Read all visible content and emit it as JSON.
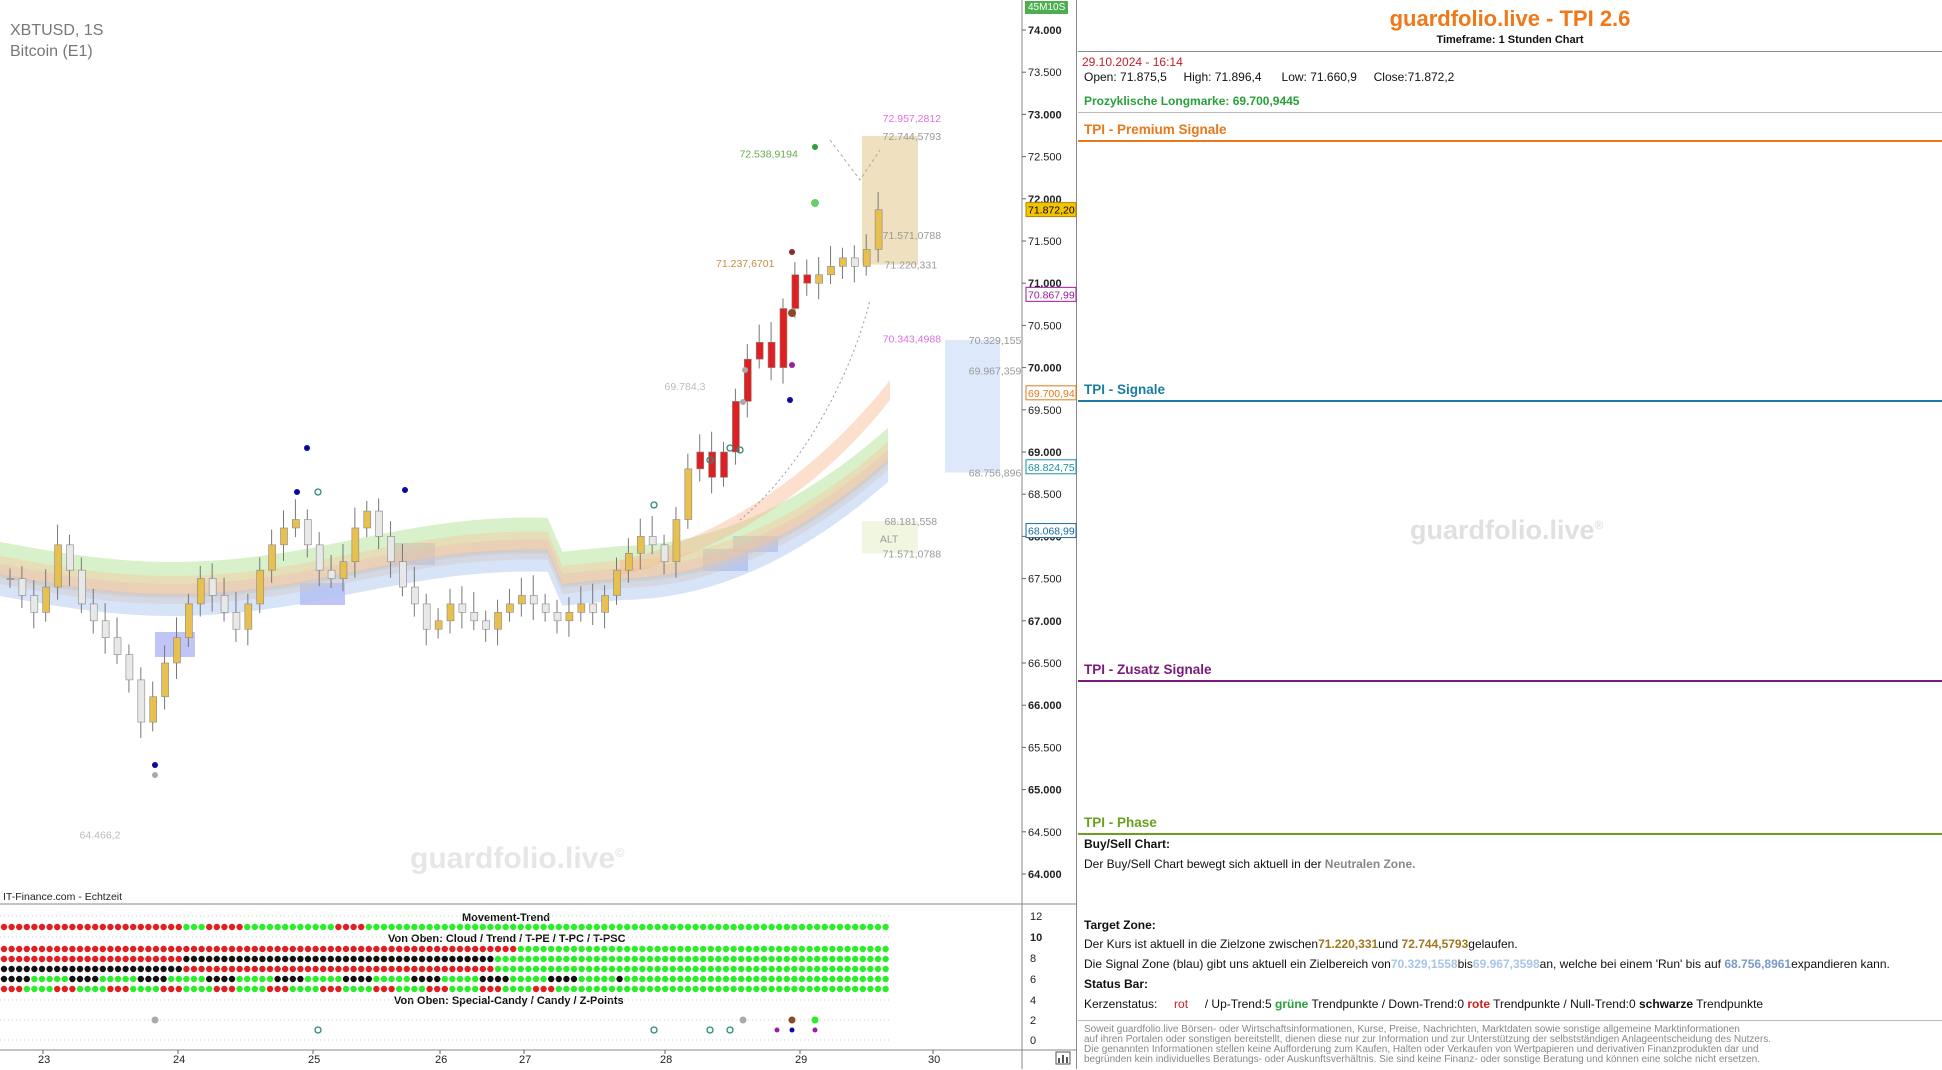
{
  "chart": {
    "symbol": "XBTUSD, 1S",
    "name": "Bitcoin (E1)",
    "timeframe_badge": "45M10S",
    "source": "IT-Finance.com - Echtzeit",
    "watermark": "guardfolio.live",
    "watermark_symbol": "©",
    "price_labels": [
      "74.000",
      "73.500",
      "73.000",
      "72.500",
      "72.000",
      "71.500",
      "71.000",
      "70.500",
      "70.000",
      "69.500",
      "69.000",
      "68.500",
      "68.000",
      "67.500",
      "67.000",
      "66.500",
      "66.000",
      "65.500",
      "65.000",
      "64.500",
      "64.000"
    ],
    "price_tags": [
      {
        "text": "71.872,20",
        "bg": "#f5c400",
        "fg": "#000",
        "border": "#b08800",
        "y": 71872
      },
      {
        "text": "70.867,99",
        "bg": "#fff",
        "fg": "#9a1aa0",
        "border": "#9a1aa0",
        "y": 70868
      },
      {
        "text": "69.700,94",
        "bg": "#fff",
        "fg": "#e07818",
        "border": "#e07818",
        "y": 69701
      },
      {
        "text": "68.824,75",
        "bg": "#fff",
        "fg": "#1a90a0",
        "border": "#1a90a0",
        "y": 68825
      },
      {
        "text": "68.068,99",
        "bg": "#fff",
        "fg": "#1a6aa0",
        "border": "#1a6aa0",
        "y": 68069
      }
    ],
    "annotations": [
      {
        "text": "72.957,2812",
        "color": "#e070e0",
        "x": 0.943,
        "y": 72957
      },
      {
        "text": "72.744,5793",
        "color": "#999",
        "x": 0.943,
        "y": 72745
      },
      {
        "text": "72.538,9194",
        "color": "#6aaa50",
        "x": 0.79,
        "y": 72539
      },
      {
        "text": "71.571,0788",
        "color": "#999",
        "x": 0.943,
        "y": 71571
      },
      {
        "text": "71.237,6701",
        "color": "#c09040",
        "x": 0.765,
        "y": 71238
      },
      {
        "text": "71.220,331",
        "color": "#999",
        "x": 0.945,
        "y": 71220
      },
      {
        "text": "70.343,4988",
        "color": "#e070e0",
        "x": 0.943,
        "y": 70343
      },
      {
        "text": "70.329,155",
        "color": "#999",
        "x": 1.035,
        "y": 70329
      },
      {
        "text": "69.967,359",
        "color": "#999",
        "x": 1.035,
        "y": 69967
      },
      {
        "text": "69.784,3",
        "color": "#bbb",
        "x": 0.71,
        "y": 69784
      },
      {
        "text": "68.756,896",
        "color": "#999",
        "x": 1.035,
        "y": 68757
      },
      {
        "text": "68.181,558",
        "color": "#999",
        "x": 0.945,
        "y": 68182
      },
      {
        "text": "ALT",
        "color": "#999",
        "x": 0.94,
        "y": 67975
      },
      {
        "text": "71.571,0788",
        "color": "#999",
        "x": 0.943,
        "y": 67800
      },
      {
        "text": "64.466,2",
        "color": "#bbb",
        "x": 0.085,
        "y": 64466
      }
    ],
    "x_labels": [
      "23",
      "24",
      "25",
      "26",
      "27",
      "28",
      "29",
      "30"
    ],
    "indicator": {
      "title1": "Movement-Trend",
      "title2": "Von Oben: Cloud / Trend / T-PE / T-PC / T-PSC",
      "title3": "Von Oben: Special-Candy / Candy / Z-Points",
      "axis_labels": [
        "12",
        "10",
        "8",
        "6",
        "4",
        "2",
        "0"
      ]
    }
  },
  "chart_data": {
    "type": "candlestick",
    "title": "XBTUSD, 1S",
    "subtitle": "Bitcoin (E1)",
    "x_categories": [
      "23",
      "24",
      "25",
      "26",
      "27",
      "28",
      "29",
      "30"
    ],
    "ylim": [
      63600,
      74300
    ],
    "close_series": [
      67.5,
      67.3,
      67.1,
      67.4,
      67.9,
      67.6,
      67.2,
      67.0,
      66.8,
      66.6,
      66.3,
      65.8,
      66.1,
      66.5,
      66.8,
      67.2,
      67.5,
      67.3,
      67.1,
      66.9,
      67.2,
      67.6,
      67.9,
      68.1,
      68.2,
      67.9,
      67.6,
      67.5,
      67.7,
      68.1,
      68.3,
      68.0,
      67.7,
      67.4,
      67.2,
      66.9,
      67.0,
      67.2,
      67.1,
      67.0,
      66.9,
      67.1,
      67.2,
      67.3,
      67.2,
      67.1,
      67.0,
      67.1,
      67.2,
      67.1,
      67.3,
      67.6,
      67.8,
      68.0,
      67.9,
      67.7,
      68.2,
      68.8,
      69.0,
      68.7,
      69.0,
      69.6,
      70.1,
      70.3,
      70.0,
      70.7,
      71.1,
      71.0,
      71.1,
      71.2,
      71.3,
      71.2,
      71.4,
      71.87
    ],
    "zones": [
      {
        "name": "target",
        "from": 71220,
        "to": 72745,
        "color": "#e8d8b0"
      },
      {
        "name": "signal",
        "from": 68757,
        "to": 70329,
        "color": "#dce8fa"
      }
    ]
  },
  "info": {
    "title": "guardfolio.live - TPI 2.6",
    "subtitle": "Timeframe: 1 Stunden Chart",
    "datetime": "29.10.2024 - 16:14",
    "ohlc": {
      "open_label": "Open:",
      "open": "71.875,5",
      "high_label": "High:",
      "high": "71.896,4",
      "low_label": "Low:",
      "low": "71.660,9",
      "close_label": "Close:",
      "close": "71.872,2"
    },
    "longmark_label": "Prozyklische Longmarke:",
    "longmark_value": "69.700,9445",
    "sections": {
      "premium": "TPI - Premium Signale",
      "signale": "TPI - Signale",
      "zusatz": "TPI - Zusatz Signale",
      "phase": "TPI - Phase"
    },
    "buysell_title": "Buy/Sell Chart:",
    "buysell_text": "Der Buy/Sell Chart bewegt sich aktuell in der",
    "buysell_zone": "Neutralen Zone.",
    "target_title": "Target Zone:",
    "target_text1": "Der Kurs ist aktuell in die Zielzone zwischen",
    "target_v1": "71.220,331",
    "target_und": "und",
    "target_v2": "72.744,5793",
    "target_text2": "gelaufen.",
    "signal_text1": "Die Signal Zone (blau) gibt uns aktuell ein Zielbereich von",
    "signal_v1": "70.329,1558",
    "signal_bis": "bis",
    "signal_v2": "69.967,3598",
    "signal_text2": "an, welche bei einem 'Run' bis auf",
    "signal_v3": "68.756,8961",
    "signal_text3": "expandieren kann.",
    "status_title": "Status Bar:",
    "status": {
      "label": "Kerzenstatus:",
      "value": "rot",
      "up": "/ Up-Trend:5",
      "green": "grüne",
      "tp1": "Trendpunkte  / Down-Trend:0",
      "red": "rote",
      "tp2": "Trendpunkte / Null-Trend:0",
      "black": "schwarze",
      "tp3": "Trendpunkte"
    },
    "disclaimer": [
      "Soweit guardfolio.live Börsen- oder Wirtschaftsinformationen, Kurse, Preise, Nachrichten, Marktdaten sowie sonstige allgemeine Marktinformationen",
      "auf ihren Portalen oder sonstigen bereitstellt, dienen diese nur zur Information und zur Unterstützung der selbstständigen Anlageentscheidung des Nutzers.",
      "Die genannten Informationen stellen keine Aufforderung zum Kaufen, Halten oder Verkaufen von Wertpapieren und derivativen Finanzprodukten dar und",
      "begründen kein individuelles Beratungs- oder Auskunftsverhältnis. Sie sind keine Finanz- oder sonstige Beratung und können eine solche nicht ersetzen."
    ],
    "watermark": "guardfolio.live",
    "watermark_symbol": "®",
    "colors": {
      "premium": "#e8781a",
      "signale": "#1a7ea0",
      "zusatz": "#7a1a7a",
      "phase": "#6aa020"
    }
  }
}
